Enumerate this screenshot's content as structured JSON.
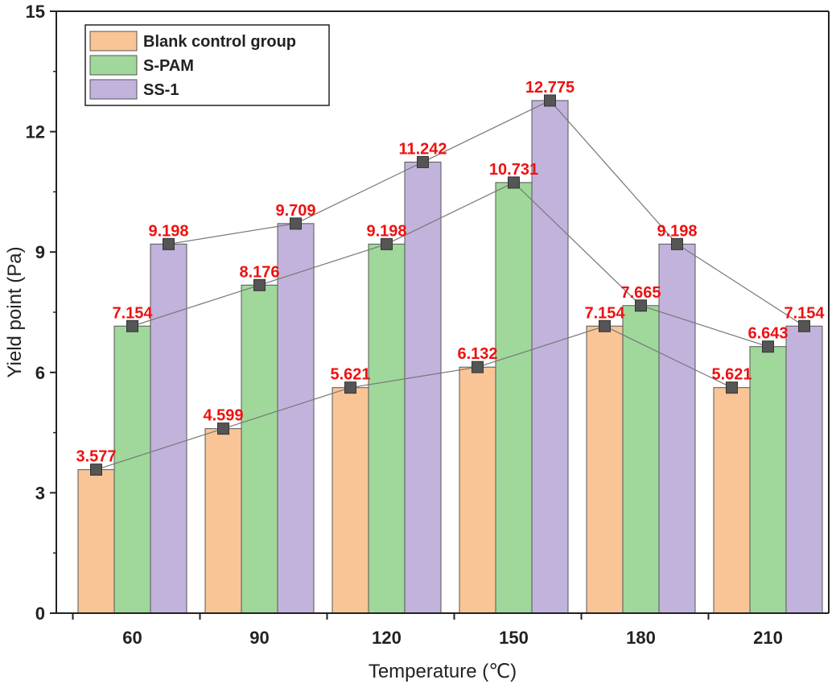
{
  "chart_data": {
    "type": "bar",
    "title": "",
    "xlabel": "Temperature (℃)",
    "ylabel": "Yield point (Pa)",
    "categories": [
      "60",
      "90",
      "120",
      "150",
      "180",
      "210"
    ],
    "ylim": [
      0,
      15
    ],
    "yticks": [
      "0",
      "3",
      "6",
      "9",
      "12",
      "15"
    ],
    "legend_position": "top-left",
    "series": [
      {
        "name": "Blank control group",
        "color": "#f9c596",
        "values": [
          3.577,
          4.599,
          5.621,
          6.132,
          7.154,
          5.621
        ],
        "labels": [
          "3.577",
          "4.599",
          "5.621",
          "6.132",
          "7.154",
          "5.621"
        ]
      },
      {
        "name": "S-PAM",
        "color": "#9fd89a",
        "values": [
          7.154,
          8.176,
          9.198,
          10.731,
          7.665,
          6.643
        ],
        "labels": [
          "7.154",
          "8.176",
          "9.198",
          "10.731",
          "7.665",
          "6.643"
        ]
      },
      {
        "name": "SS-1",
        "color": "#c2b3dc",
        "values": [
          9.198,
          9.709,
          11.242,
          12.775,
          9.198,
          7.154
        ],
        "labels": [
          "9.198",
          "9.709",
          "11.242",
          "12.775",
          "9.198",
          "7.154"
        ]
      }
    ],
    "label_color": "#ee1111",
    "marker_color": "#555555",
    "line_color": "#777777"
  }
}
